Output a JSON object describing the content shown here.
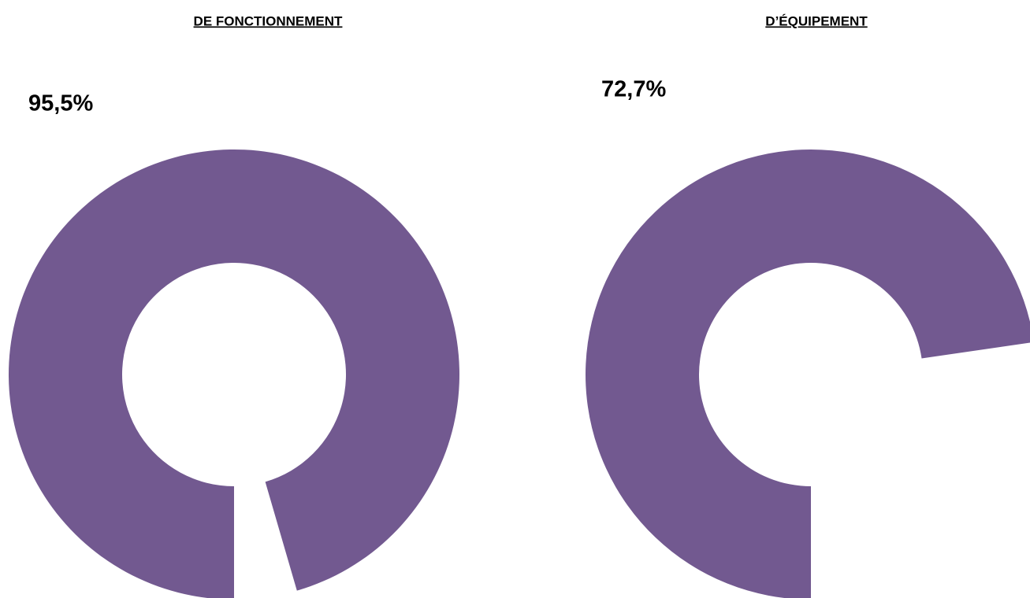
{
  "chart_data": [
    {
      "type": "donut",
      "title": "DE FONCTIONNEMENT",
      "values": [
        95.5
      ],
      "value_labels": [
        "95,5%"
      ],
      "color": "#725990"
    },
    {
      "type": "donut",
      "title": "D’ÉQUIPEMENT",
      "values": [
        72.7
      ],
      "value_labels": [
        "72,7%"
      ],
      "color": "#725990"
    }
  ]
}
